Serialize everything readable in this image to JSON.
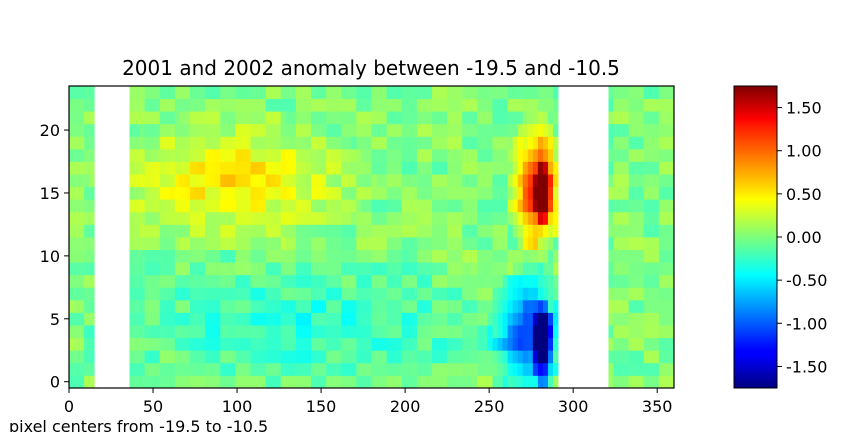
{
  "chart_data": {
    "type": "heatmap",
    "title": "2001 and 2002 anomaly between -19.5 and -10.5",
    "xlabel": "pixel centers from -19.5 to -10.5",
    "ylabel": "",
    "xlim": [
      0,
      360
    ],
    "ylim": [
      -0.5,
      23.5
    ],
    "xticks": [
      0,
      50,
      100,
      150,
      200,
      250,
      300,
      350
    ],
    "xtick_labels": [
      "0",
      "50",
      "100",
      "150",
      "200",
      "250",
      "300",
      "350"
    ],
    "yticks": [
      0,
      5,
      10,
      15,
      20
    ],
    "ytick_labels": [
      "0",
      "5",
      "10",
      "15",
      "20"
    ],
    "colormap": "jet",
    "colorbar": {
      "vmin": -1.75,
      "vmax": 1.75,
      "ticks": [
        -1.5,
        -1.0,
        -0.5,
        0.0,
        0.5,
        1.0,
        1.5
      ],
      "tick_labels": [
        "-1.50",
        "-1.00",
        "-0.50",
        "0.00",
        "0.50",
        "1.00",
        "1.50"
      ]
    },
    "missing_columns": [
      [
        15,
        34
      ],
      [
        290,
        320
      ]
    ],
    "rows": 24,
    "columns": 360,
    "features": [
      {
        "description": "strong positive anomaly",
        "x": [
          265,
          290
        ],
        "y": [
          11,
          20
        ],
        "value": 1.2
      },
      {
        "description": "peak positive anomaly",
        "x": [
          278,
          286
        ],
        "y": [
          13,
          17
        ],
        "value": 1.65
      },
      {
        "description": "negative anomaly",
        "x": [
          255,
          290
        ],
        "y": [
          0,
          8
        ],
        "value": -1.0
      },
      {
        "description": "peak negative anomaly",
        "x": [
          277,
          287
        ],
        "y": [
          0,
          6
        ],
        "value": -1.65
      },
      {
        "description": "warm band",
        "x": [
          34,
          160
        ],
        "y": [
          12,
          20
        ],
        "value": 0.5
      },
      {
        "description": "cool band",
        "x": [
          34,
          250
        ],
        "y": [
          0,
          9
        ],
        "value": -0.3
      }
    ]
  }
}
